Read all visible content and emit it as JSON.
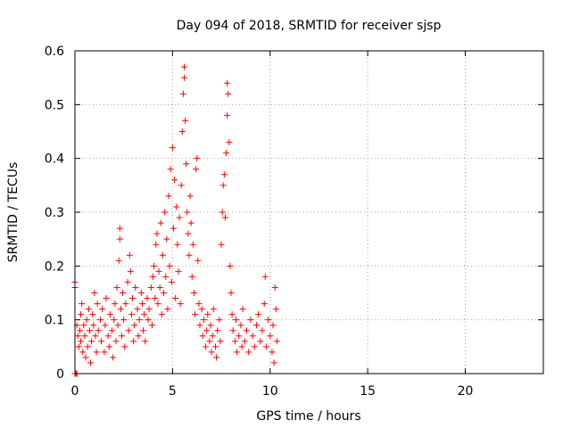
{
  "chart_data": {
    "type": "scatter",
    "title": "Day 094 of 2018, SRMTID for receiver sjsp",
    "xlabel": "GPS time / hours",
    "ylabel": "SRMTID / TECUs",
    "xlim": [
      0,
      24
    ],
    "ylim": [
      0,
      0.6
    ],
    "xticks": [
      0,
      5,
      10,
      15,
      20
    ],
    "xtick_labels": [
      "0",
      "5",
      "10",
      "15",
      "20"
    ],
    "yticks": [
      0,
      0.1,
      0.2,
      0.3,
      0.4,
      0.5,
      0.6
    ],
    "ytick_labels": [
      "0",
      "0.1",
      "0.2",
      "0.3",
      "0.4",
      "0.5",
      "0.6"
    ],
    "grid": true,
    "marker": "+",
    "color": "#ff0000",
    "series": [
      {
        "name": "SRMTID",
        "points": [
          [
            0.0,
            0.17
          ],
          [
            0.0,
            0.16
          ],
          [
            0.0,
            0.0
          ],
          [
            0.05,
            0.0
          ],
          [
            0.1,
            0.0
          ],
          [
            0.1,
            0.09
          ],
          [
            0.15,
            0.07
          ],
          [
            0.2,
            0.05
          ],
          [
            0.25,
            0.08
          ],
          [
            0.3,
            0.11
          ],
          [
            0.3,
            0.06
          ],
          [
            0.35,
            0.13
          ],
          [
            0.4,
            0.04
          ],
          [
            0.45,
            0.09
          ],
          [
            0.5,
            0.07
          ],
          [
            0.55,
            0.03
          ],
          [
            0.6,
            0.1
          ],
          [
            0.65,
            0.05
          ],
          [
            0.7,
            0.12
          ],
          [
            0.75,
            0.08
          ],
          [
            0.8,
            0.02
          ],
          [
            0.85,
            0.06
          ],
          [
            0.9,
            0.11
          ],
          [
            0.95,
            0.09
          ],
          [
            1.0,
            0.15
          ],
          [
            1.05,
            0.07
          ],
          [
            1.1,
            0.04
          ],
          [
            1.15,
            0.13
          ],
          [
            1.2,
            0.08
          ],
          [
            1.3,
            0.1
          ],
          [
            1.35,
            0.06
          ],
          [
            1.4,
            0.12
          ],
          [
            1.5,
            0.04
          ],
          [
            1.55,
            0.09
          ],
          [
            1.6,
            0.14
          ],
          [
            1.7,
            0.07
          ],
          [
            1.75,
            0.05
          ],
          [
            1.8,
            0.11
          ],
          [
            1.9,
            0.08
          ],
          [
            1.95,
            0.03
          ],
          [
            2.0,
            0.1
          ],
          [
            2.05,
            0.13
          ],
          [
            2.1,
            0.06
          ],
          [
            2.15,
            0.16
          ],
          [
            2.2,
            0.09
          ],
          [
            2.25,
            0.21
          ],
          [
            2.3,
            0.25
          ],
          [
            2.3,
            0.27
          ],
          [
            2.35,
            0.12
          ],
          [
            2.4,
            0.07
          ],
          [
            2.45,
            0.15
          ],
          [
            2.5,
            0.1
          ],
          [
            2.55,
            0.05
          ],
          [
            2.6,
            0.13
          ],
          [
            2.7,
            0.17
          ],
          [
            2.75,
            0.08
          ],
          [
            2.8,
            0.22
          ],
          [
            2.85,
            0.19
          ],
          [
            2.9,
            0.11
          ],
          [
            2.95,
            0.14
          ],
          [
            3.0,
            0.06
          ],
          [
            3.05,
            0.09
          ],
          [
            3.1,
            0.16
          ],
          [
            3.2,
            0.12
          ],
          [
            3.25,
            0.07
          ],
          [
            3.3,
            0.1
          ],
          [
            3.4,
            0.15
          ],
          [
            3.45,
            0.13
          ],
          [
            3.5,
            0.08
          ],
          [
            3.55,
            0.11
          ],
          [
            3.6,
            0.06
          ],
          [
            3.7,
            0.14
          ],
          [
            3.75,
            0.1
          ],
          [
            3.8,
            0.12
          ],
          [
            3.9,
            0.16
          ],
          [
            3.95,
            0.09
          ],
          [
            4.0,
            0.18
          ],
          [
            4.05,
            0.2
          ],
          [
            4.1,
            0.14
          ],
          [
            4.15,
            0.24
          ],
          [
            4.2,
            0.26
          ],
          [
            4.25,
            0.13
          ],
          [
            4.3,
            0.19
          ],
          [
            4.35,
            0.16
          ],
          [
            4.4,
            0.28
          ],
          [
            4.45,
            0.11
          ],
          [
            4.5,
            0.22
          ],
          [
            4.55,
            0.15
          ],
          [
            4.6,
            0.3
          ],
          [
            4.65,
            0.18
          ],
          [
            4.7,
            0.25
          ],
          [
            4.75,
            0.12
          ],
          [
            4.8,
            0.33
          ],
          [
            4.85,
            0.2
          ],
          [
            4.9,
            0.38
          ],
          [
            4.95,
            0.17
          ],
          [
            5.0,
            0.42
          ],
          [
            5.05,
            0.27
          ],
          [
            5.1,
            0.36
          ],
          [
            5.15,
            0.14
          ],
          [
            5.2,
            0.31
          ],
          [
            5.25,
            0.24
          ],
          [
            5.3,
            0.19
          ],
          [
            5.35,
            0.29
          ],
          [
            5.4,
            0.13
          ],
          [
            5.45,
            0.35
          ],
          [
            5.5,
            0.45
          ],
          [
            5.55,
            0.52
          ],
          [
            5.6,
            0.57
          ],
          [
            5.6,
            0.55
          ],
          [
            5.65,
            0.47
          ],
          [
            5.7,
            0.39
          ],
          [
            5.75,
            0.3
          ],
          [
            5.8,
            0.26
          ],
          [
            5.85,
            0.22
          ],
          [
            5.9,
            0.33
          ],
          [
            5.95,
            0.28
          ],
          [
            6.0,
            0.18
          ],
          [
            6.05,
            0.24
          ],
          [
            6.1,
            0.15
          ],
          [
            6.15,
            0.11
          ],
          [
            6.2,
            0.38
          ],
          [
            6.25,
            0.4
          ],
          [
            6.3,
            0.21
          ],
          [
            6.35,
            0.13
          ],
          [
            6.4,
            0.09
          ],
          [
            6.5,
            0.12
          ],
          [
            6.55,
            0.07
          ],
          [
            6.6,
            0.1
          ],
          [
            6.7,
            0.05
          ],
          [
            6.75,
            0.08
          ],
          [
            6.8,
            0.11
          ],
          [
            6.9,
            0.06
          ],
          [
            6.95,
            0.09
          ],
          [
            7.0,
            0.04
          ],
          [
            7.05,
            0.07
          ],
          [
            7.1,
            0.12
          ],
          [
            7.2,
            0.05
          ],
          [
            7.25,
            0.03
          ],
          [
            7.3,
            0.08
          ],
          [
            7.4,
            0.1
          ],
          [
            7.45,
            0.06
          ],
          [
            7.5,
            0.24
          ],
          [
            7.55,
            0.3
          ],
          [
            7.6,
            0.35
          ],
          [
            7.65,
            0.37
          ],
          [
            7.7,
            0.29
          ],
          [
            7.75,
            0.41
          ],
          [
            7.8,
            0.48
          ],
          [
            7.8,
            0.54
          ],
          [
            7.85,
            0.52
          ],
          [
            7.9,
            0.43
          ],
          [
            7.95,
            0.2
          ],
          [
            8.0,
            0.15
          ],
          [
            8.05,
            0.11
          ],
          [
            8.1,
            0.08
          ],
          [
            8.2,
            0.06
          ],
          [
            8.25,
            0.1
          ],
          [
            8.3,
            0.04
          ],
          [
            8.4,
            0.07
          ],
          [
            8.5,
            0.09
          ],
          [
            8.55,
            0.05
          ],
          [
            8.6,
            0.12
          ],
          [
            8.7,
            0.06
          ],
          [
            8.8,
            0.08
          ],
          [
            8.9,
            0.04
          ],
          [
            9.0,
            0.1
          ],
          [
            9.1,
            0.07
          ],
          [
            9.2,
            0.05
          ],
          [
            9.3,
            0.09
          ],
          [
            9.4,
            0.11
          ],
          [
            9.5,
            0.06
          ],
          [
            9.6,
            0.08
          ],
          [
            9.7,
            0.13
          ],
          [
            9.75,
            0.18
          ],
          [
            9.8,
            0.05
          ],
          [
            9.9,
            0.1
          ],
          [
            10.0,
            0.07
          ],
          [
            10.1,
            0.04
          ],
          [
            10.15,
            0.09
          ],
          [
            10.2,
            0.02
          ],
          [
            10.25,
            0.16
          ],
          [
            10.3,
            0.12
          ],
          [
            10.35,
            0.06
          ]
        ]
      }
    ]
  }
}
